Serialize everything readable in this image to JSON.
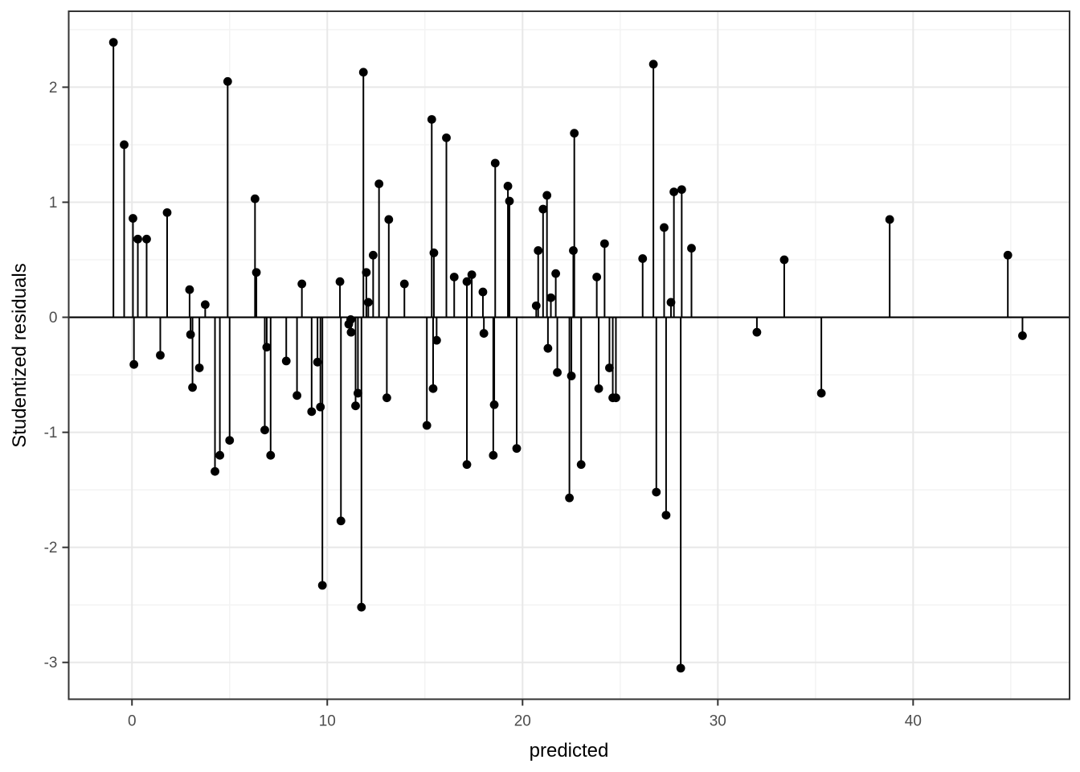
{
  "figure": {
    "background": "#ffffff"
  },
  "chart_data": {
    "type": "scatter",
    "style": "stem",
    "title": "",
    "xlabel": "predicted",
    "ylabel": "Studentized residuals",
    "xlim": [
      -3.24,
      48.01
    ],
    "ylim": [
      -3.32,
      2.66
    ],
    "baseline": 0,
    "grid": true,
    "x_ticks": [
      0,
      10,
      20,
      30,
      40
    ],
    "x_tick_labels": [
      "0",
      "10",
      "20",
      "30",
      "40"
    ],
    "y_ticks": [
      -3,
      -2,
      -1,
      0,
      1,
      2
    ],
    "y_tick_labels": [
      "-3",
      "-2",
      "-1",
      "0",
      "1",
      "2"
    ],
    "x_minor_ticks": [
      5,
      15,
      25,
      35,
      45
    ],
    "y_minor_ticks": [
      -2.5,
      -1.5,
      -0.5,
      0.5,
      1.5,
      2.5
    ],
    "points": [
      [
        -0.95,
        2.39
      ],
      [
        -0.4,
        1.5
      ],
      [
        0.05,
        0.86
      ],
      [
        0.1,
        -0.41
      ],
      [
        0.3,
        0.68
      ],
      [
        0.75,
        0.68
      ],
      [
        1.45,
        -0.33
      ],
      [
        1.8,
        0.91
      ],
      [
        2.95,
        0.24
      ],
      [
        3.0,
        -0.15
      ],
      [
        3.1,
        -0.61
      ],
      [
        3.45,
        -0.44
      ],
      [
        3.75,
        0.11
      ],
      [
        4.25,
        -1.34
      ],
      [
        4.5,
        -1.2
      ],
      [
        4.9,
        2.05
      ],
      [
        5.0,
        -1.07
      ],
      [
        6.3,
        1.03
      ],
      [
        6.37,
        0.39
      ],
      [
        6.8,
        -0.98
      ],
      [
        6.9,
        -0.26
      ],
      [
        7.1,
        -1.2
      ],
      [
        7.9,
        -0.38
      ],
      [
        8.45,
        -0.68
      ],
      [
        8.7,
        0.29
      ],
      [
        9.2,
        -0.82
      ],
      [
        9.5,
        -0.39
      ],
      [
        9.65,
        -0.78
      ],
      [
        9.75,
        -2.33
      ],
      [
        10.65,
        0.31
      ],
      [
        10.7,
        -1.77
      ],
      [
        11.1,
        -0.06
      ],
      [
        11.2,
        -0.02
      ],
      [
        11.22,
        -0.13
      ],
      [
        11.45,
        -0.77
      ],
      [
        11.57,
        -0.66
      ],
      [
        11.75,
        -2.52
      ],
      [
        11.85,
        2.13
      ],
      [
        12.0,
        0.39
      ],
      [
        12.1,
        0.13
      ],
      [
        12.35,
        0.54
      ],
      [
        12.65,
        1.16
      ],
      [
        13.05,
        -0.7
      ],
      [
        13.15,
        0.85
      ],
      [
        13.95,
        0.29
      ],
      [
        15.1,
        -0.94
      ],
      [
        15.35,
        1.72
      ],
      [
        15.42,
        -0.62
      ],
      [
        15.46,
        0.56
      ],
      [
        15.6,
        -0.2
      ],
      [
        16.1,
        1.56
      ],
      [
        16.5,
        0.35
      ],
      [
        17.15,
        0.31
      ],
      [
        17.15,
        -1.28
      ],
      [
        17.4,
        0.37
      ],
      [
        17.97,
        0.22
      ],
      [
        18.02,
        -0.14
      ],
      [
        18.5,
        -1.2
      ],
      [
        18.55,
        -0.76
      ],
      [
        18.6,
        1.34
      ],
      [
        19.25,
        1.14
      ],
      [
        19.33,
        1.01
      ],
      [
        19.7,
        -1.14
      ],
      [
        20.7,
        0.1
      ],
      [
        20.8,
        0.58
      ],
      [
        21.05,
        0.94
      ],
      [
        21.25,
        1.06
      ],
      [
        21.3,
        -0.27
      ],
      [
        21.45,
        0.17
      ],
      [
        21.7,
        0.38
      ],
      [
        21.78,
        -0.48
      ],
      [
        22.4,
        -1.57
      ],
      [
        22.5,
        -0.51
      ],
      [
        22.6,
        0.58
      ],
      [
        22.65,
        1.6
      ],
      [
        23.0,
        -1.28
      ],
      [
        23.8,
        0.35
      ],
      [
        23.9,
        -0.62
      ],
      [
        24.2,
        0.64
      ],
      [
        24.45,
        -0.44
      ],
      [
        24.62,
        -0.7
      ],
      [
        24.78,
        -0.7
      ],
      [
        26.15,
        0.51
      ],
      [
        26.7,
        2.2
      ],
      [
        26.85,
        -1.52
      ],
      [
        27.25,
        0.78
      ],
      [
        27.35,
        -1.72
      ],
      [
        27.6,
        0.13
      ],
      [
        27.75,
        1.09
      ],
      [
        28.1,
        -3.05
      ],
      [
        28.15,
        1.11
      ],
      [
        28.65,
        0.6
      ],
      [
        32.0,
        -0.13
      ],
      [
        33.4,
        0.5
      ],
      [
        35.3,
        -0.66
      ],
      [
        38.8,
        0.85
      ],
      [
        44.85,
        0.54
      ],
      [
        45.6,
        -0.16
      ]
    ]
  },
  "colors": {
    "panel_background": "#ffffff",
    "major_grid": "#e8e8e8",
    "minor_grid": "#f3f3f3",
    "panel_border": "#333333",
    "tick_mark": "#333333",
    "tick_label": "#4d4d4d",
    "stem": "#000000",
    "point": "#000000",
    "zero_line": "#000000"
  }
}
